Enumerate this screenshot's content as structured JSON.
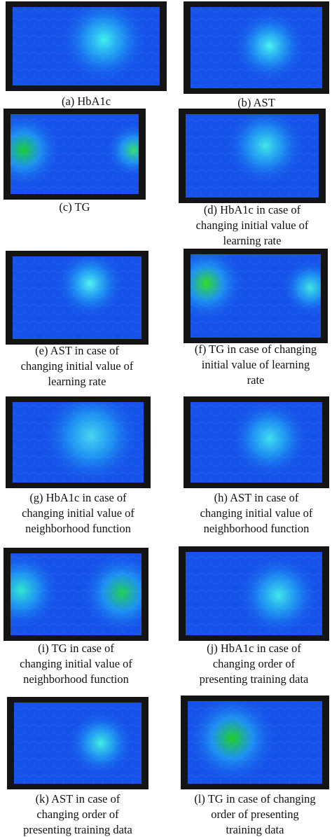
{
  "panels": [
    {
      "caption": [
        "(a) HbA1c"
      ]
    },
    {
      "caption": [
        "(b) AST"
      ]
    },
    {
      "caption": [
        "(c) TG"
      ]
    },
    {
      "caption": [
        "(d) HbA1c in case of",
        "changing initial value of",
        "learning rate"
      ]
    },
    {
      "caption": [
        "(e) AST in case of",
        "changing initial value of",
        "learning rate"
      ]
    },
    {
      "caption": [
        "(f) TG in case of changing",
        "initial value of learning",
        "rate"
      ]
    },
    {
      "caption": [
        "(g) HbA1c in case of",
        "changing initial value of",
        "neighborhood function"
      ]
    },
    {
      "caption": [
        "(h) AST in case of",
        "changing initial value of",
        "neighborhood function"
      ]
    },
    {
      "caption": [
        "(i) TG in case of",
        "changing initial value of",
        "neighborhood function"
      ]
    },
    {
      "caption": [
        "(j) HbA1c in case of",
        "changing order of",
        "presenting training data"
      ]
    },
    {
      "caption": [
        "(k) AST in case of",
        "changing order of",
        "presenting training data"
      ]
    },
    {
      "caption": [
        "(l) TG in case of changing",
        "order of presenting",
        "training data"
      ]
    }
  ]
}
